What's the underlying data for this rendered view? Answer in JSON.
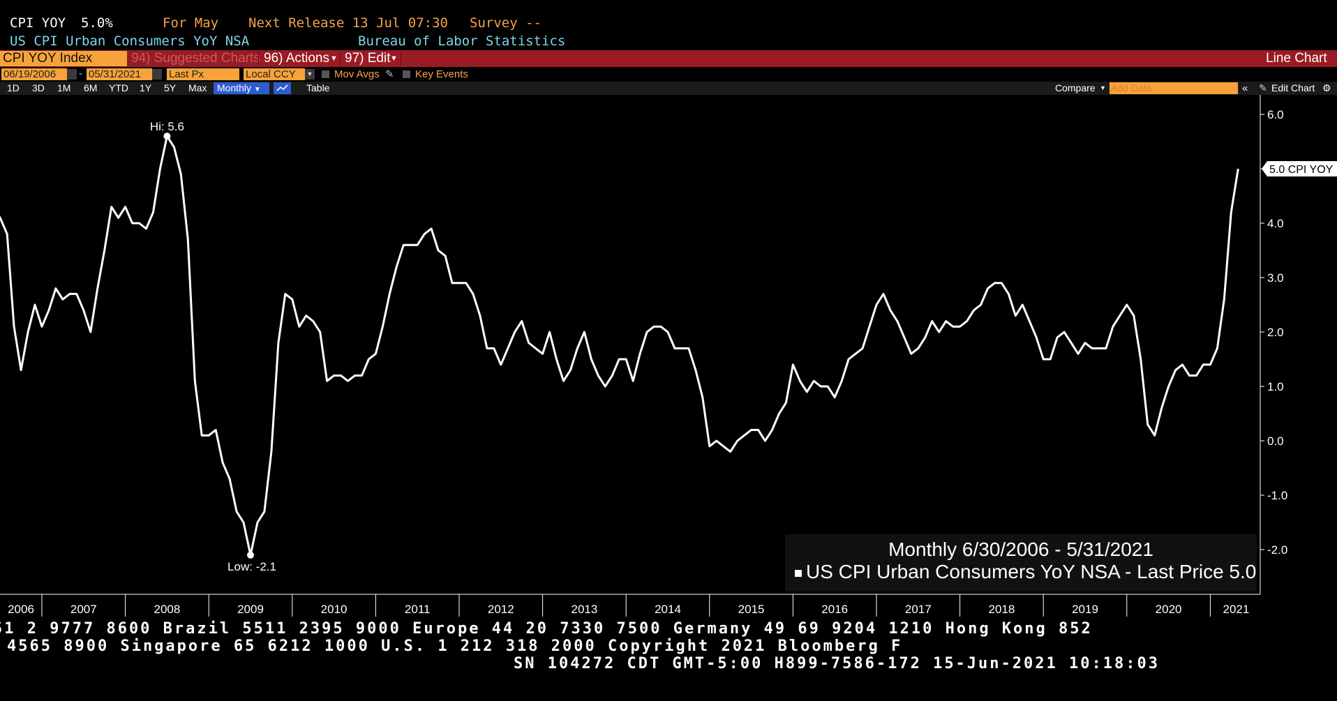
{
  "header": {
    "ticker_label": "CPI YOY",
    "ticker_value": "5.0%",
    "for_label": "For May",
    "next_release": "Next Release 13 Jul 07:30",
    "survey": "Survey --",
    "description": "US CPI Urban Consumers YoY NSA",
    "source": "Bureau of Labor Statistics"
  },
  "toolbar": {
    "security": "CPI YOY Index",
    "suggested": "94) Suggested Charts",
    "actions": "96) Actions",
    "edit": "97) Edit",
    "chart_type": "Line Chart",
    "start_date": "06/19/2006",
    "end_date": "05/31/2021",
    "field": "Last Px",
    "currency": "Local CCY",
    "mov_avgs": "Mov Avgs",
    "key_events": "Key Events",
    "periods": [
      "1D",
      "3D",
      "1M",
      "6M",
      "YTD",
      "1Y",
      "5Y",
      "Max"
    ],
    "frequency": "Monthly",
    "table": "Table",
    "compare": "Compare",
    "add_data": "Add Data",
    "edit_chart": "Edit Chart"
  },
  "legend": {
    "range": "Monthly 6/30/2006 - 5/31/2021",
    "series": "US CPI Urban Consumers YoY NSA - Last Price 5.0"
  },
  "footer": {
    "line1": "51 2 9777 8600 Brazil 5511 2395 9000 Europe 44 20 7330 7500 Germany 49 69 9204 1210 Hong Kong 852",
    "line2": "4565 8900       Singapore 65 6212 1000       U.S. 1 212 318 2000          Copyright 2021 Bloomberg F",
    "line3": "SN 104272 CDT  GMT-5:00 H899-7586-172 15-Jun-2021 10:18:03"
  },
  "colors": {
    "background": "#000000",
    "line": "#ffffff",
    "orange": "#f7a24b",
    "cyan": "#7fd6e8",
    "red_bar": "#9b1b24"
  },
  "chart_data": {
    "type": "line",
    "series_name": "US CPI Urban Consumers YoY NSA",
    "start": "2006-06",
    "frequency": "monthly",
    "values": [
      4.3,
      4.1,
      3.8,
      2.1,
      1.3,
      2.0,
      2.5,
      2.1,
      2.4,
      2.8,
      2.6,
      2.7,
      2.7,
      2.4,
      2.0,
      2.8,
      3.5,
      4.3,
      4.1,
      4.3,
      4.0,
      4.0,
      3.9,
      4.2,
      5.0,
      5.6,
      5.4,
      4.9,
      3.7,
      1.1,
      0.1,
      0.1,
      0.2,
      -0.4,
      -0.7,
      -1.3,
      -1.5,
      -2.1,
      -1.5,
      -1.3,
      -0.2,
      1.8,
      2.7,
      2.6,
      2.1,
      2.3,
      2.2,
      2.0,
      1.1,
      1.2,
      1.2,
      1.1,
      1.2,
      1.2,
      1.5,
      1.6,
      2.1,
      2.7,
      3.2,
      3.6,
      3.6,
      3.6,
      3.8,
      3.9,
      3.5,
      3.4,
      2.9,
      2.9,
      2.9,
      2.7,
      2.3,
      1.7,
      1.7,
      1.4,
      1.7,
      2.0,
      2.2,
      1.8,
      1.7,
      1.6,
      2.0,
      1.5,
      1.1,
      1.3,
      1.7,
      2.0,
      1.5,
      1.2,
      1.0,
      1.2,
      1.5,
      1.5,
      1.1,
      1.6,
      2.0,
      2.1,
      2.1,
      2.0,
      1.7,
      1.7,
      1.7,
      1.3,
      0.8,
      -0.1,
      0.0,
      -0.1,
      -0.2,
      0.0,
      0.1,
      0.2,
      0.2,
      0.0,
      0.2,
      0.5,
      0.7,
      1.4,
      1.1,
      0.9,
      1.1,
      1.0,
      1.0,
      0.8,
      1.1,
      1.5,
      1.6,
      1.7,
      2.1,
      2.5,
      2.7,
      2.4,
      2.2,
      1.9,
      1.6,
      1.7,
      1.9,
      2.2,
      2.0,
      2.2,
      2.1,
      2.1,
      2.2,
      2.4,
      2.5,
      2.8,
      2.9,
      2.9,
      2.7,
      2.3,
      2.5,
      2.2,
      1.9,
      1.5,
      1.5,
      1.9,
      2.0,
      1.8,
      1.6,
      1.8,
      1.7,
      1.7,
      1.7,
      2.1,
      2.3,
      2.5,
      2.3,
      1.5,
      0.3,
      0.1,
      0.6,
      1.0,
      1.3,
      1.4,
      1.2,
      1.2,
      1.4,
      1.4,
      1.7,
      2.6,
      4.2,
      5.0
    ],
    "x_ticks": [
      "2006",
      "2007",
      "2008",
      "2009",
      "2010",
      "2011",
      "2012",
      "2013",
      "2014",
      "2015",
      "2016",
      "2017",
      "2018",
      "2019",
      "2020",
      "2021"
    ],
    "y_ticks": [
      "6.0",
      "5.0",
      "4.0",
      "3.0",
      "2.0",
      "1.0",
      "0.0",
      "-1.0",
      "-2.0"
    ],
    "ylim": [
      -2.8,
      6.2
    ],
    "hi_label": "Hi: 5.6",
    "low_label": "Low: -2.1",
    "last_label": "5.0 CPI YOY"
  }
}
